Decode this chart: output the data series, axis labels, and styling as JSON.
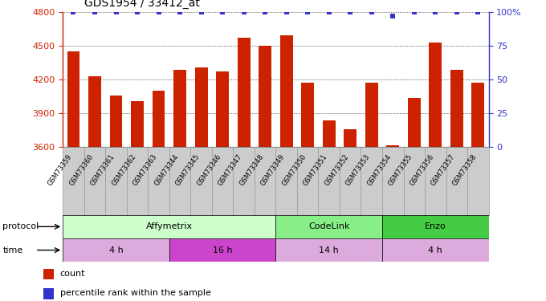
{
  "title": "GDS1954 / 33412_at",
  "samples": [
    "GSM73359",
    "GSM73360",
    "GSM73361",
    "GSM73362",
    "GSM73363",
    "GSM73344",
    "GSM73345",
    "GSM73346",
    "GSM73347",
    "GSM73348",
    "GSM73349",
    "GSM73350",
    "GSM73351",
    "GSM73352",
    "GSM73353",
    "GSM73354",
    "GSM73355",
    "GSM73356",
    "GSM73357",
    "GSM73358"
  ],
  "counts": [
    4450,
    4230,
    4060,
    4010,
    4100,
    4290,
    4310,
    4270,
    4570,
    4500,
    4590,
    4170,
    3840,
    3760,
    4170,
    3620,
    4040,
    4530,
    4290,
    4170
  ],
  "percentile_ranks": [
    100,
    100,
    100,
    100,
    100,
    100,
    100,
    100,
    100,
    100,
    100,
    100,
    100,
    100,
    100,
    97,
    100,
    100,
    100,
    100
  ],
  "bar_color": "#cc2200",
  "percentile_color": "#3333cc",
  "ymin": 3600,
  "ymax": 4800,
  "yticks": [
    3600,
    3900,
    4200,
    4500,
    4800
  ],
  "right_yticks": [
    0,
    25,
    50,
    75,
    100
  ],
  "right_ylabels": [
    "0",
    "25",
    "50",
    "75",
    "100%"
  ],
  "protocol_groups": [
    {
      "label": "Affymetrix",
      "start": 0,
      "end": 9,
      "color": "#ccffcc"
    },
    {
      "label": "CodeLink",
      "start": 10,
      "end": 14,
      "color": "#88ee88"
    },
    {
      "label": "Enzo",
      "start": 15,
      "end": 19,
      "color": "#44cc44"
    }
  ],
  "time_groups": [
    {
      "label": "4 h",
      "start": 0,
      "end": 4,
      "color": "#ddaadd"
    },
    {
      "label": "16 h",
      "start": 5,
      "end": 9,
      "color": "#cc44cc"
    },
    {
      "label": "14 h",
      "start": 10,
      "end": 14,
      "color": "#ddaadd"
    },
    {
      "label": "4 h",
      "start": 15,
      "end": 19,
      "color": "#ddaadd"
    }
  ],
  "legend_count_color": "#cc2200",
  "legend_percentile_color": "#3333cc",
  "xtick_bg": "#cccccc",
  "xtick_edge": "#999999"
}
